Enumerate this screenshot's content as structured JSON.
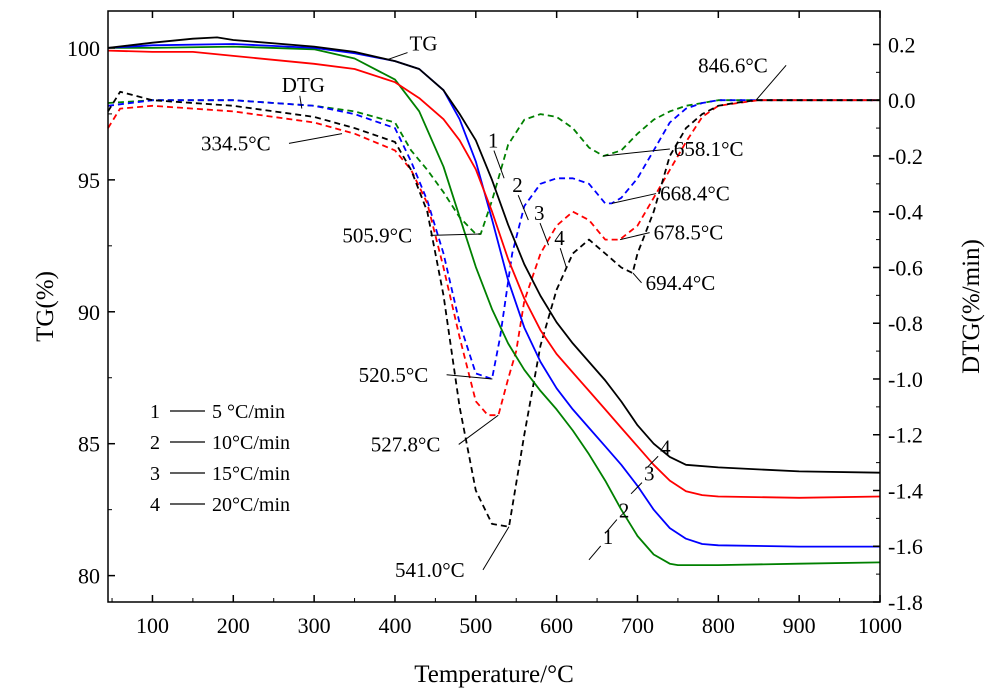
{
  "chart_data": {
    "type": "line",
    "xlabel": "Temperature/°C",
    "ylabel_left": "TG(%)",
    "ylabel_right": "DTG(%/min)",
    "xlim": [
      45,
      1000
    ],
    "ylim_left": [
      79,
      101.4
    ],
    "ylim_right": [
      -1.8,
      0.32
    ],
    "x_ticks": [
      100,
      200,
      300,
      400,
      500,
      600,
      700,
      800,
      900,
      1000
    ],
    "x_tick_labels": [
      "100",
      "200",
      "300",
      "400",
      "500",
      "600",
      "700",
      "800",
      "900",
      "1000"
    ],
    "y_left_ticks": [
      80,
      85,
      90,
      95,
      100
    ],
    "y_left_tick_labels": [
      "80",
      "85",
      "90",
      "95",
      "100"
    ],
    "y_right_ticks": [
      -1.8,
      -1.6,
      -1.4,
      -1.2,
      -1.0,
      -0.8,
      -0.6,
      -0.4,
      -0.2,
      0.0,
      0.2
    ],
    "y_right_tick_labels": [
      "-1.8",
      "-1.6",
      "-1.4",
      "-1.2",
      "-1.0",
      "-0.8",
      "-0.6",
      "-0.4",
      "-0.2",
      "0.0",
      "0.2"
    ],
    "colors": {
      "s1": "#008000",
      "s2": "#0000ff",
      "s3": "#ff0000",
      "s4": "#000000"
    },
    "tg_series": [
      {
        "name": "1",
        "rate": "5 °C/min",
        "color": "#008000",
        "x": [
          45,
          100,
          200,
          300,
          350,
          400,
          430,
          460,
          480,
          500,
          520,
          540,
          560,
          580,
          600,
          620,
          640,
          660,
          680,
          700,
          720,
          740,
          750,
          800,
          900,
          1000
        ],
        "y": [
          100.0,
          100.0,
          100.05,
          99.95,
          99.6,
          98.8,
          97.6,
          95.5,
          93.6,
          91.7,
          90.1,
          88.8,
          87.8,
          87.0,
          86.3,
          85.5,
          84.6,
          83.6,
          82.5,
          81.5,
          80.8,
          80.45,
          80.4,
          80.4,
          80.45,
          80.5
        ]
      },
      {
        "name": "2",
        "rate": "10°C/min",
        "color": "#0000ff",
        "x": [
          45,
          100,
          200,
          300,
          350,
          400,
          430,
          460,
          480,
          500,
          520,
          540,
          560,
          580,
          600,
          620,
          640,
          660,
          680,
          700,
          720,
          740,
          760,
          780,
          800,
          900,
          1000
        ],
        "y": [
          100.0,
          100.1,
          100.15,
          100.0,
          99.8,
          99.5,
          99.2,
          98.4,
          97.3,
          95.7,
          93.5,
          91.2,
          89.4,
          88.1,
          87.1,
          86.3,
          85.6,
          84.9,
          84.2,
          83.4,
          82.5,
          81.8,
          81.4,
          81.2,
          81.15,
          81.1,
          81.1
        ]
      },
      {
        "name": "3",
        "rate": "15°C/min",
        "color": "#ff0000",
        "x": [
          45,
          100,
          150,
          200,
          300,
          350,
          400,
          430,
          460,
          480,
          500,
          520,
          540,
          560,
          580,
          600,
          620,
          640,
          660,
          680,
          700,
          720,
          740,
          760,
          780,
          800,
          900,
          1000
        ],
        "y": [
          99.9,
          99.85,
          99.85,
          99.7,
          99.4,
          99.2,
          98.7,
          98.1,
          97.3,
          96.5,
          95.4,
          93.8,
          92.0,
          90.5,
          89.3,
          88.4,
          87.7,
          87.0,
          86.3,
          85.6,
          84.9,
          84.2,
          83.6,
          83.2,
          83.05,
          83.0,
          82.95,
          83.0
        ]
      },
      {
        "name": "4",
        "rate": "20°C/min",
        "color": "#000000",
        "x": [
          45,
          100,
          150,
          180,
          200,
          300,
          350,
          400,
          430,
          460,
          480,
          500,
          520,
          540,
          560,
          580,
          600,
          620,
          640,
          660,
          680,
          700,
          720,
          740,
          760,
          800,
          900,
          1000
        ],
        "y": [
          100.0,
          100.2,
          100.35,
          100.4,
          100.3,
          100.05,
          99.85,
          99.5,
          99.2,
          98.4,
          97.5,
          96.5,
          95.0,
          93.3,
          91.8,
          90.6,
          89.6,
          88.8,
          88.1,
          87.4,
          86.6,
          85.7,
          85.0,
          84.5,
          84.2,
          84.1,
          83.95,
          83.9
        ]
      }
    ],
    "dtg_series": [
      {
        "name": "1",
        "color": "#008000",
        "x": [
          45,
          100,
          200,
          300,
          350,
          400,
          420,
          440,
          460,
          480,
          500,
          506,
          520,
          540,
          560,
          580,
          600,
          620,
          640,
          658,
          680,
          700,
          720,
          740,
          760,
          800,
          850,
          900,
          1000
        ],
        "y": [
          -0.01,
          0.0,
          0.0,
          -0.02,
          -0.04,
          -0.08,
          -0.18,
          -0.25,
          -0.33,
          -0.42,
          -0.48,
          -0.48,
          -0.36,
          -0.16,
          -0.07,
          -0.05,
          -0.06,
          -0.1,
          -0.17,
          -0.2,
          -0.18,
          -0.12,
          -0.07,
          -0.04,
          -0.02,
          0.0,
          0.0,
          0.0,
          0.0
        ]
      },
      {
        "name": "2",
        "color": "#0000ff",
        "x": [
          45,
          100,
          200,
          300,
          350,
          400,
          420,
          440,
          460,
          480,
          500,
          520,
          530,
          545,
          560,
          580,
          600,
          620,
          640,
          660,
          668,
          680,
          700,
          720,
          740,
          760,
          780,
          800,
          850,
          900,
          1000
        ],
        "y": [
          -0.02,
          0.0,
          0.0,
          -0.02,
          -0.05,
          -0.1,
          -0.22,
          -0.36,
          -0.55,
          -0.8,
          -0.98,
          -1.0,
          -0.85,
          -0.55,
          -0.38,
          -0.3,
          -0.28,
          -0.28,
          -0.3,
          -0.37,
          -0.37,
          -0.35,
          -0.28,
          -0.18,
          -0.08,
          -0.03,
          -0.01,
          0.0,
          0.0,
          0.0,
          0.0
        ]
      },
      {
        "name": "3",
        "color": "#ff0000",
        "x": [
          45,
          60,
          100,
          200,
          300,
          350,
          400,
          420,
          440,
          460,
          480,
          500,
          515,
          528,
          540,
          550,
          560,
          580,
          600,
          620,
          640,
          660,
          678,
          700,
          720,
          740,
          760,
          780,
          800,
          850,
          900,
          1000
        ],
        "y": [
          -0.1,
          -0.03,
          -0.02,
          -0.04,
          -0.08,
          -0.12,
          -0.18,
          -0.25,
          -0.37,
          -0.6,
          -0.85,
          -1.08,
          -1.13,
          -1.13,
          -1.0,
          -0.9,
          -0.72,
          -0.55,
          -0.45,
          -0.4,
          -0.43,
          -0.5,
          -0.5,
          -0.45,
          -0.35,
          -0.25,
          -0.15,
          -0.06,
          -0.02,
          0.0,
          0.0,
          0.0
        ]
      },
      {
        "name": "4",
        "color": "#000000",
        "x": [
          45,
          60,
          100,
          200,
          300,
          350,
          400,
          420,
          440,
          460,
          480,
          500,
          520,
          541,
          560,
          580,
          600,
          620,
          640,
          660,
          680,
          694,
          700,
          720,
          740,
          760,
          780,
          800,
          820,
          847,
          900,
          1000
        ],
        "y": [
          -0.04,
          0.03,
          0.0,
          -0.02,
          -0.06,
          -0.1,
          -0.15,
          -0.25,
          -0.4,
          -0.7,
          -1.1,
          -1.4,
          -1.52,
          -1.53,
          -1.2,
          -0.88,
          -0.68,
          -0.55,
          -0.5,
          -0.55,
          -0.6,
          -0.62,
          -0.55,
          -0.4,
          -0.2,
          -0.1,
          -0.05,
          -0.02,
          -0.01,
          0.0,
          0.0,
          0.0
        ]
      }
    ],
    "annotations": {
      "tg_label": {
        "text": "TG",
        "x": 418,
        "y": 99.9,
        "target_x": 390,
        "target_y": 99.55
      },
      "dtg_label": {
        "text": "DTG",
        "x": 260,
        "y": 0.03,
        "target_x": 260,
        "target_y": -0.03
      },
      "peaks": [
        {
          "text": "334.5°C",
          "x": 160,
          "y": -0.18,
          "target_x": 334.5,
          "target_y": -0.12,
          "anchor": "start"
        },
        {
          "text": "505.9°C",
          "x": 335,
          "y": -0.51,
          "target_x": 505.9,
          "target_y": -0.48,
          "anchor": "start"
        },
        {
          "text": "520.5°C",
          "x": 355,
          "y": -1.01,
          "target_x": 520.5,
          "target_y": -1.0,
          "anchor": "start"
        },
        {
          "text": "527.8°C",
          "x": 370,
          "y": -1.26,
          "target_x": 527.8,
          "target_y": -1.13,
          "anchor": "start"
        },
        {
          "text": "541.0°C",
          "x": 400,
          "y": -1.71,
          "target_x": 541.0,
          "target_y": -1.53,
          "anchor": "start"
        },
        {
          "text": "658.1°C",
          "x": 745,
          "y": -0.2,
          "target_x": 658.1,
          "target_y": -0.2,
          "anchor": "start"
        },
        {
          "text": "668.4°C",
          "x": 728,
          "y": -0.36,
          "target_x": 668.4,
          "target_y": -0.37,
          "anchor": "start"
        },
        {
          "text": "678.5°C",
          "x": 720,
          "y": -0.5,
          "target_x": 678.5,
          "target_y": -0.5,
          "anchor": "start"
        },
        {
          "text": "694.4°C",
          "x": 710,
          "y": -0.68,
          "target_x": 694.4,
          "target_y": -0.62,
          "anchor": "start"
        },
        {
          "text": "846.6°C",
          "x": 775,
          "y": 0.1,
          "target_x": 846.6,
          "target_y": 0.0,
          "anchor": "start"
        }
      ],
      "curve_numbers": [
        {
          "text": "1",
          "x": 515,
          "y": -0.17,
          "target_x": 535,
          "target_y": -0.28
        },
        {
          "text": "2",
          "x": 545,
          "y": -0.33,
          "target_x": 565,
          "target_y": -0.43
        },
        {
          "text": "3",
          "x": 572,
          "y": -0.43,
          "target_x": 590,
          "target_y": -0.52
        },
        {
          "text": "4",
          "x": 597,
          "y": -0.52,
          "target_x": 612,
          "target_y": -0.6
        }
      ],
      "tg_numbers": [
        {
          "text": "1",
          "x": 657,
          "y": 81.2,
          "target_x": 640,
          "target_y": 80.6
        },
        {
          "text": "2",
          "x": 677,
          "y": 82.2,
          "target_x": 660,
          "target_y": 81.6
        },
        {
          "text": "3",
          "x": 708,
          "y": 83.6,
          "target_x": 692,
          "target_y": 83.1
        },
        {
          "text": "4",
          "x": 728,
          "y": 84.6,
          "target_x": 712,
          "target_y": 84.1
        }
      ]
    },
    "legend": {
      "position": "bottom-left",
      "entries": [
        {
          "num": "1",
          "label": "5 °C/min"
        },
        {
          "num": "2",
          "label": "10°C/min"
        },
        {
          "num": "3",
          "label": "15°C/min"
        },
        {
          "num": "4",
          "label": "20°C/min"
        }
      ]
    }
  }
}
